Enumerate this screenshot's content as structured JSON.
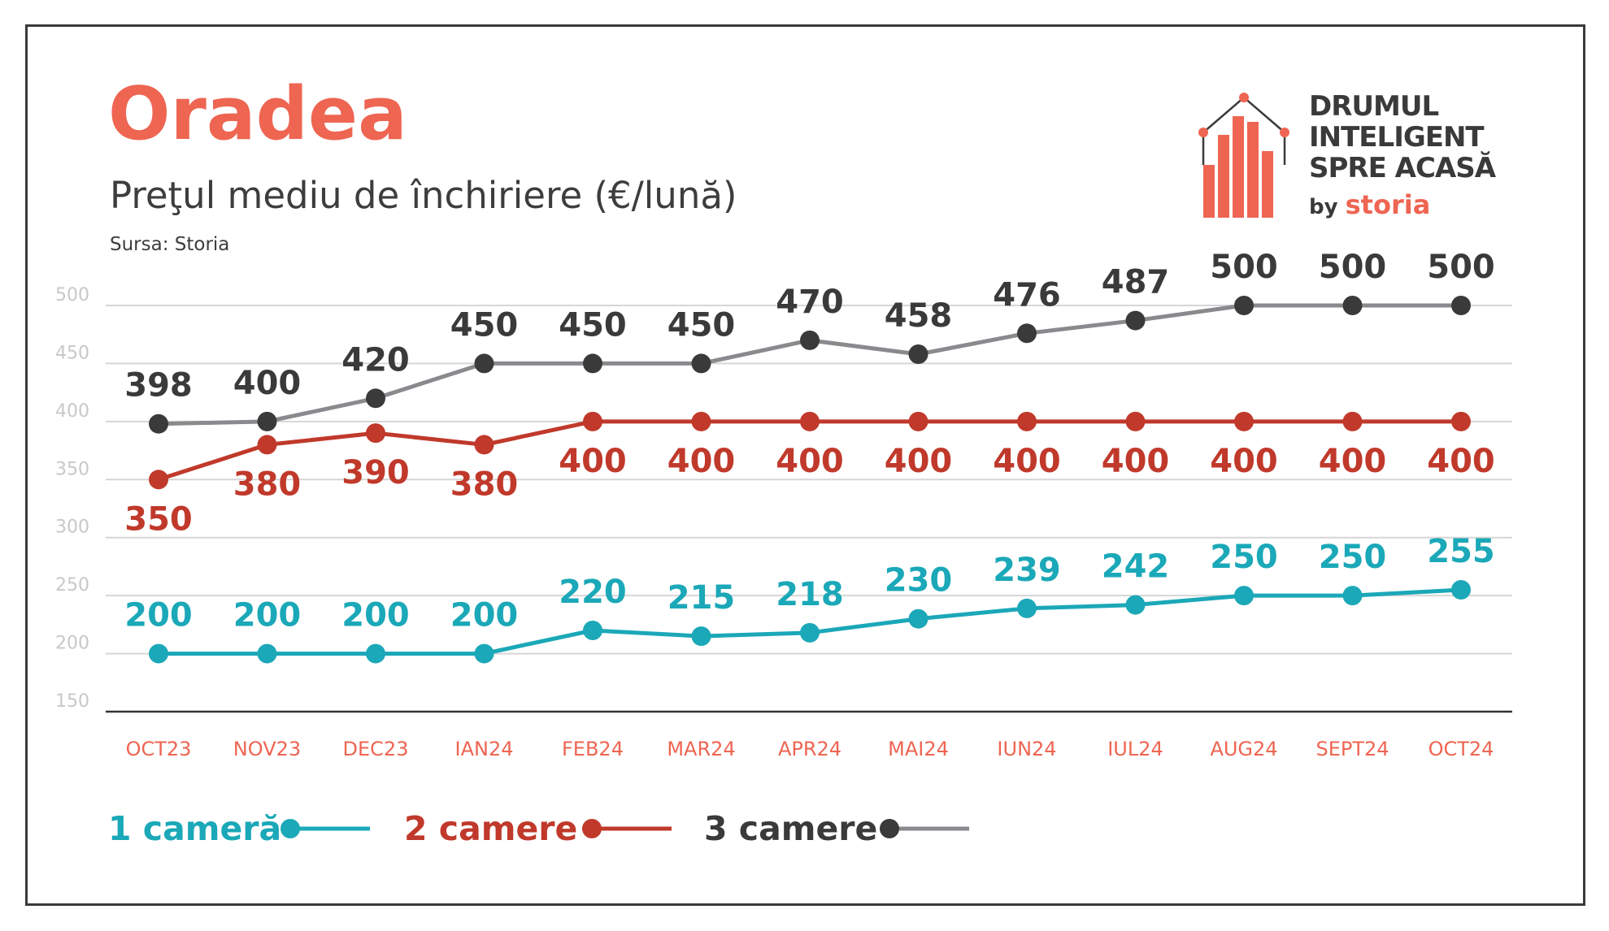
{
  "header": {
    "title": "Oradea",
    "subtitle": "Preţul mediu de închiriere (€/lună)",
    "source": "Sursa: Storia"
  },
  "logo": {
    "line1": "DRUMUL",
    "line2": "INTELIGENT",
    "line3": "SPRE ACASĂ",
    "by": "by",
    "brand": "storia"
  },
  "colors": {
    "accent": "#ee6552",
    "series_1": "#1ba8b8",
    "series_2": "#c0392b",
    "series_3": "#3a3a3a",
    "line_3": "#8a8a8e"
  },
  "chart_data": {
    "type": "line",
    "title": "Preţul mediu de închiriere (€/lună)",
    "categories": [
      "OCT23",
      "NOV23",
      "DEC23",
      "IAN24",
      "FEB24",
      "MAR24",
      "APR24",
      "MAI24",
      "IUN24",
      "IUL24",
      "AUG24",
      "SEPT24",
      "OCT24"
    ],
    "yticks": [
      500,
      450,
      400,
      350,
      300,
      250,
      200,
      150
    ],
    "ylim": [
      150,
      500
    ],
    "grid": true,
    "legend_position": "bottom-left",
    "series": [
      {
        "name": "1 cameră",
        "values": [
          200,
          200,
          200,
          200,
          220,
          215,
          218,
          230,
          239,
          242,
          250,
          250,
          255
        ]
      },
      {
        "name": "2 camere",
        "values": [
          350,
          380,
          390,
          380,
          400,
          400,
          400,
          400,
          400,
          400,
          400,
          400,
          400
        ]
      },
      {
        "name": "3 camere",
        "values": [
          398,
          400,
          420,
          450,
          450,
          450,
          470,
          458,
          476,
          487,
          500,
          500,
          500
        ]
      }
    ]
  }
}
